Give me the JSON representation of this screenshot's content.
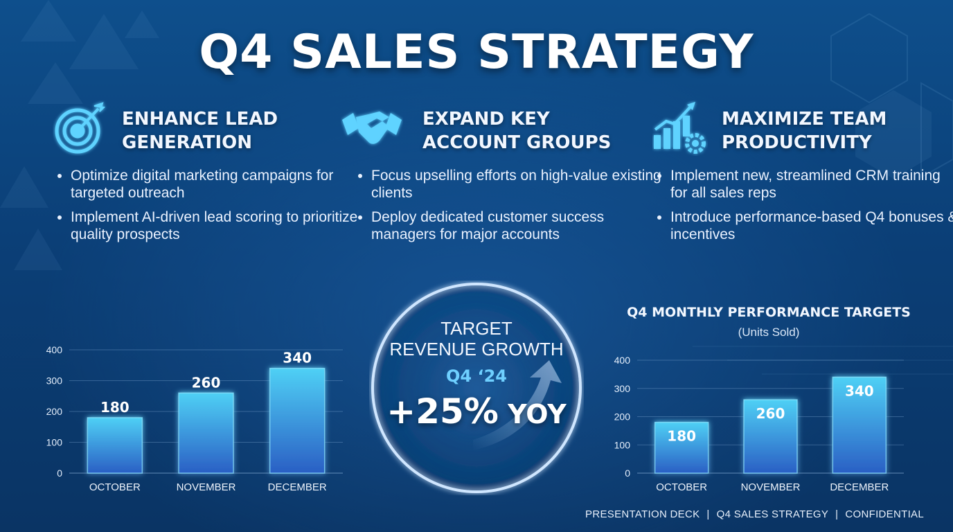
{
  "title": "Q4 SALES STRATEGY",
  "columns": [
    {
      "icon": "target-icon",
      "heading_line1": "ENHANCE LEAD",
      "heading_line2": "GENERATION",
      "bullets": [
        "Optimize digital marketing campaigns for targeted outreach",
        "Implement AI-driven lead scoring to prioritize quality prospects"
      ]
    },
    {
      "icon": "handshake-icon",
      "heading_line1": "EXPAND KEY",
      "heading_line2": "ACCOUNT GROUPS",
      "bullets": [
        "Focus upselling efforts on high-value existing clients",
        "Deploy dedicated customer success managers for major accounts"
      ]
    },
    {
      "icon": "growth-chart-gear-icon",
      "heading_line1": "MAXIMIZE TEAM",
      "heading_line2": "PRODUCTIVITY",
      "bullets": [
        "Implement new, streamlined CRM training for all sales reps",
        "Introduce performance-based Q4 bonuses & incentives"
      ]
    }
  ],
  "target": {
    "line1": "TARGET",
    "line2": "REVENUE GROWTH",
    "period": "Q4 ‘24",
    "value": "+25%",
    "suffix": "YOY",
    "icon": "upward-arrow-icon"
  },
  "chart_data": [
    {
      "type": "bar",
      "categories": [
        "OCTOBER",
        "NOVEMBER",
        "DECEMBER"
      ],
      "values": [
        180,
        260,
        340
      ],
      "ylim": [
        0,
        400
      ],
      "yticks": [
        0,
        100,
        200,
        300,
        400
      ],
      "grid": true,
      "data_labels": "above"
    },
    {
      "type": "bar",
      "title": "Q4 MONTHLY PERFORMANCE TARGETS",
      "subtitle": "(Units Sold)",
      "categories": [
        "OCTOBER",
        "NOVEMBER",
        "DECEMBER"
      ],
      "values": [
        180,
        260,
        340
      ],
      "ylim": [
        0,
        400
      ],
      "yticks": [
        0,
        100,
        200,
        300,
        400
      ],
      "grid": true,
      "data_labels": "inside-top"
    }
  ],
  "footer": {
    "items": [
      "PRESENTATION DECK",
      "Q4 SALES STRATEGY",
      "CONFIDENTIAL"
    ],
    "separator": "|"
  },
  "colors": {
    "background": "#0b3f77",
    "bar_top": "#4fd0f5",
    "bar_bottom": "#2a5fc4",
    "accent": "#6fd0ff"
  }
}
